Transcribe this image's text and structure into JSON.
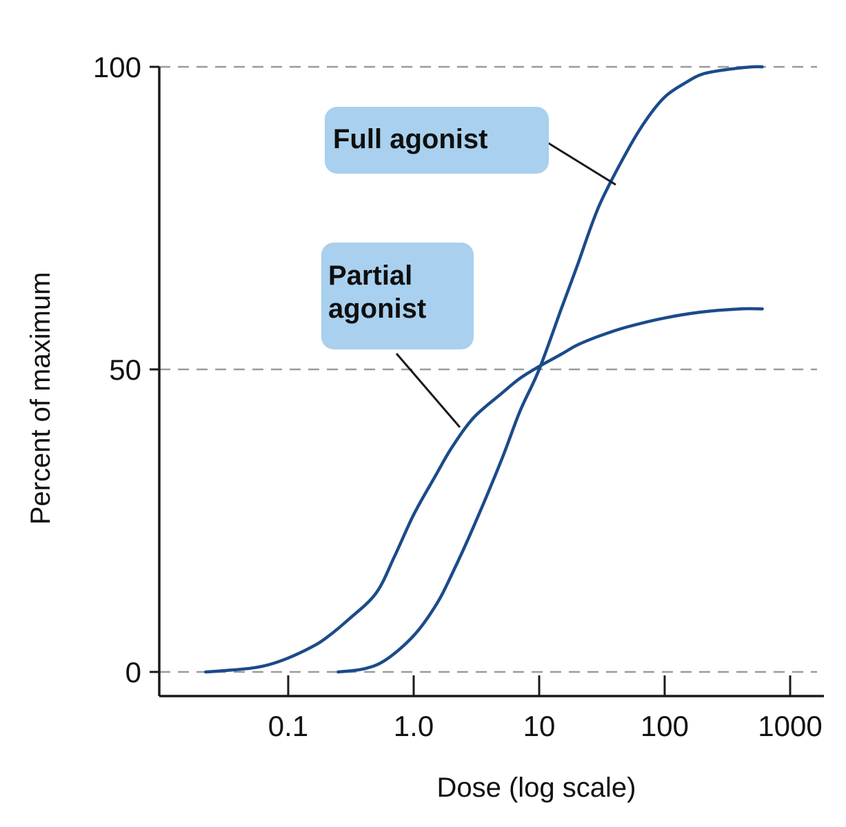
{
  "chart_data": {
    "type": "line",
    "xlabel": "Dose (log scale)",
    "ylabel": "Percent of maximum",
    "xscale": "log",
    "xlim": [
      0.02,
      1000
    ],
    "ylim": [
      0,
      100
    ],
    "x_ticks": [
      {
        "value": 0.1,
        "label": "0.1"
      },
      {
        "value": 1,
        "label": "1.0"
      },
      {
        "value": 10,
        "label": "10"
      },
      {
        "value": 100,
        "label": "100"
      },
      {
        "value": 1000,
        "label": "1000"
      }
    ],
    "y_ticks": [
      {
        "value": 0,
        "label": "0"
      },
      {
        "value": 50,
        "label": "50"
      },
      {
        "value": 100,
        "label": "100"
      }
    ],
    "reference_lines_y": [
      0,
      50,
      100
    ],
    "grid": false,
    "series": [
      {
        "name": "Full agonist",
        "label_lines": [
          "Full agonist"
        ],
        "x": [
          0.25,
          0.4,
          0.6,
          1,
          1.5,
          2,
          3,
          5,
          7,
          10,
          15,
          20,
          30,
          50,
          70,
          100,
          150,
          200,
          300,
          500,
          600
        ],
        "y": [
          0,
          0.5,
          2,
          6,
          11,
          16,
          24,
          35,
          43,
          50,
          60,
          67,
          77,
          86,
          91,
          95,
          97.5,
          98.8,
          99.5,
          100,
          100
        ]
      },
      {
        "name": "Partial agonist",
        "label_lines": [
          "Partial",
          "agonist"
        ],
        "x": [
          0.022,
          0.03,
          0.05,
          0.07,
          0.1,
          0.15,
          0.2,
          0.3,
          0.5,
          0.7,
          1,
          1.5,
          2,
          3,
          5,
          7,
          10,
          15,
          20,
          30,
          50,
          100,
          200,
          400,
          600
        ],
        "y": [
          0,
          0.2,
          0.6,
          1.2,
          2.3,
          4,
          5.6,
          8.6,
          13,
          19,
          26,
          32.5,
          37,
          42,
          46,
          48.5,
          50.5,
          52.5,
          54,
          55.5,
          57,
          58.5,
          59.5,
          60,
          60
        ]
      }
    ]
  },
  "colors": {
    "curve": "#1b4b8a",
    "label_box": "#a9d0ee",
    "axis": "#1a1a1a",
    "reference_line": "#9a9a9a",
    "text": "#111111"
  }
}
